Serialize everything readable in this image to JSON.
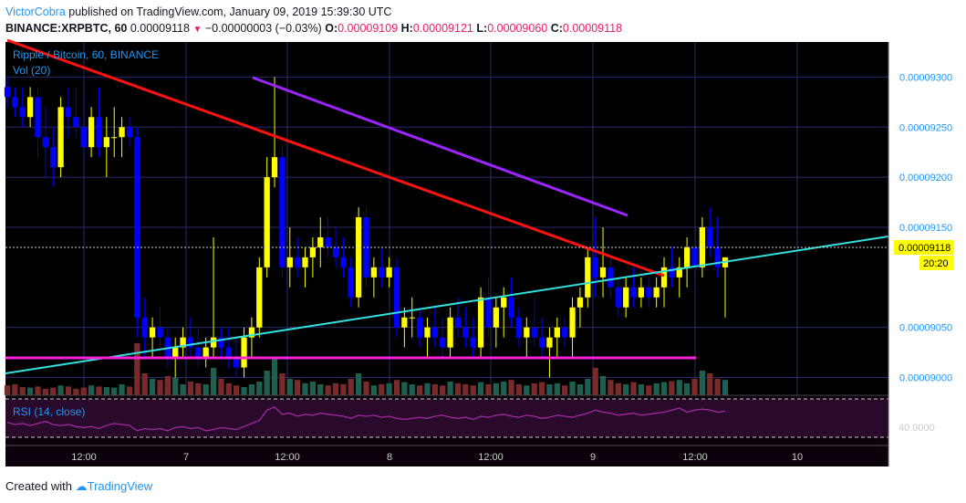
{
  "header": {
    "author": "VictorCobra",
    "published": "published on TradingView.com, January 09, 2019 15:39:30 UTC",
    "symbol": "BINANCE:XRPBTC, 60",
    "last": "0.00009118",
    "change": "−0.00000003 (−0.03%)",
    "o_label": "O:",
    "o": "0.00009109",
    "h_label": "H:",
    "h": "0.00009121",
    "l_label": "L:",
    "l": "0.00009060",
    "c_label": "C:",
    "c": "0.00009118"
  },
  "legend": {
    "title": "Ripple / Bitcoin, 60, BINANCE",
    "vol": "Vol (20)",
    "rsi": "RSI (14, close)"
  },
  "footer": {
    "created_with": "Created with",
    "brand": "TradingView"
  },
  "colors": {
    "background": "#000000",
    "grid": "#2a2a6a",
    "bull": "#ffff00",
    "bear": "#0000ff",
    "vol_bull": "#1f5f4f",
    "vol_bear": "#7a2a2a",
    "trend_red": "#ff1111",
    "trend_purple": "#9b24ff",
    "trend_cyan": "#33e0e0",
    "support_magenta": "#ff22dd",
    "rsi_line": "#a02aa0",
    "axis_text": "#2196f3",
    "price_label_bg": "#ffff00"
  },
  "chart_data": {
    "type": "candlestick",
    "title": "Ripple / Bitcoin, 60, BINANCE",
    "y_ticks": [
      "0.00009300",
      "0.00009250",
      "0.00009200",
      "0.00009150",
      "0.00009050",
      "0.00009000"
    ],
    "ylim": [
      8.985e-05,
      9.335e-05
    ],
    "x_ticks": [
      "12:00",
      "7",
      "12:00",
      "8",
      "12:00",
      "9",
      "12:00",
      "10"
    ],
    "current_price": "0.00009118",
    "countdown": "20:20",
    "rsi_level_label": "40.0000",
    "candles": [
      [
        9.29e-05,
        9.3e-05,
        9.27e-05,
        9.28e-05
      ],
      [
        9.28e-05,
        9.29e-05,
        9.26e-05,
        9.27e-05
      ],
      [
        9.27e-05,
        9.29e-05,
        9.25e-05,
        9.26e-05
      ],
      [
        9.26e-05,
        9.29e-05,
        9.25e-05,
        9.28e-05
      ],
      [
        9.28e-05,
        9.29e-05,
        9.22e-05,
        9.24e-05
      ],
      [
        9.24e-05,
        9.27e-05,
        9.2e-05,
        9.23e-05
      ],
      [
        9.23e-05,
        9.25e-05,
        9.19e-05,
        9.21e-05
      ],
      [
        9.21e-05,
        9.28e-05,
        9.2e-05,
        9.27e-05
      ],
      [
        9.27e-05,
        9.29e-05,
        9.24e-05,
        9.26e-05
      ],
      [
        9.26e-05,
        9.29e-05,
        9.24e-05,
        9.25e-05
      ],
      [
        9.25e-05,
        9.28e-05,
        9.22e-05,
        9.23e-05
      ],
      [
        9.23e-05,
        9.27e-05,
        9.22e-05,
        9.26e-05
      ],
      [
        9.26e-05,
        9.29e-05,
        9.22e-05,
        9.23e-05
      ],
      [
        9.23e-05,
        9.26e-05,
        9.2e-05,
        9.24e-05
      ],
      [
        9.24e-05,
        9.27e-05,
        9.22e-05,
        9.24e-05
      ],
      [
        9.24e-05,
        9.26e-05,
        9.22e-05,
        9.25e-05
      ],
      [
        9.25e-05,
        9.26e-05,
        9.23e-05,
        9.24e-05
      ],
      [
        9.24e-05,
        9.25e-05,
        9.04e-05,
        9.06e-05
      ],
      [
        9.06e-05,
        9.08e-05,
        9.02e-05,
        9.04e-05
      ],
      [
        9.04e-05,
        9.06e-05,
        9.02e-05,
        9.05e-05
      ],
      [
        9.05e-05,
        9.07e-05,
        9.03e-05,
        9.04e-05
      ],
      [
        9.04e-05,
        9.05e-05,
        9.01e-05,
        9.02e-05
      ],
      [
        9.02e-05,
        9.04e-05,
        9e-05,
        9.03e-05
      ],
      [
        9.03e-05,
        9.05e-05,
        9.02e-05,
        9.04e-05
      ],
      [
        9.04e-05,
        9.06e-05,
        9.02e-05,
        9.03e-05
      ],
      [
        9.03e-05,
        9.05e-05,
        9.01e-05,
        9.02e-05
      ],
      [
        9.02e-05,
        9.04e-05,
        9.01e-05,
        9.03e-05
      ],
      [
        9.03e-05,
        9.14e-05,
        9.02e-05,
        9.04e-05
      ],
      [
        9.04e-05,
        9.05e-05,
        9.02e-05,
        9.03e-05
      ],
      [
        9.03e-05,
        9.05e-05,
        9.01e-05,
        9.02e-05
      ],
      [
        9.02e-05,
        9.04e-05,
        9e-05,
        9.01e-05
      ],
      [
        9.01e-05,
        9.05e-05,
        9e-05,
        9.04e-05
      ],
      [
        9.04e-05,
        9.06e-05,
        9.02e-05,
        9.05e-05
      ],
      [
        9.05e-05,
        9.12e-05,
        9.04e-05,
        9.11e-05
      ],
      [
        9.11e-05,
        9.22e-05,
        9.1e-05,
        9.2e-05
      ],
      [
        9.2e-05,
        9.3e-05,
        9.19e-05,
        9.22e-05
      ],
      [
        9.22e-05,
        9.23e-05,
        9.1e-05,
        9.11e-05
      ],
      [
        9.11e-05,
        9.15e-05,
        9.09e-05,
        9.12e-05
      ],
      [
        9.12e-05,
        9.14e-05,
        9.1e-05,
        9.11e-05
      ],
      [
        9.11e-05,
        9.13e-05,
        9.09e-05,
        9.12e-05
      ],
      [
        9.12e-05,
        9.14e-05,
        9.1e-05,
        9.13e-05
      ],
      [
        9.13e-05,
        9.16e-05,
        9.11e-05,
        9.14e-05
      ],
      [
        9.14e-05,
        9.16e-05,
        9.12e-05,
        9.13e-05
      ],
      [
        9.13e-05,
        9.15e-05,
        9.11e-05,
        9.12e-05
      ],
      [
        9.12e-05,
        9.14e-05,
        9.1e-05,
        9.11e-05
      ],
      [
        9.11e-05,
        9.12e-05,
        9.07e-05,
        9.08e-05
      ],
      [
        9.08e-05,
        9.17e-05,
        9.07e-05,
        9.16e-05
      ],
      [
        9.16e-05,
        9.17e-05,
        9.09e-05,
        9.1e-05
      ],
      [
        9.1e-05,
        9.12e-05,
        9.08e-05,
        9.11e-05
      ],
      [
        9.11e-05,
        9.13e-05,
        9.09e-05,
        9.1e-05
      ],
      [
        9.1e-05,
        9.12e-05,
        9.09e-05,
        9.11e-05
      ],
      [
        9.11e-05,
        9.12e-05,
        9.04e-05,
        9.05e-05
      ],
      [
        9.05e-05,
        9.07e-05,
        9.03e-05,
        9.06e-05
      ],
      [
        9.06e-05,
        9.08e-05,
        9.04e-05,
        9.06e-05
      ],
      [
        9.06e-05,
        9.07e-05,
        9.03e-05,
        9.04e-05
      ],
      [
        9.04e-05,
        9.06e-05,
        9.02e-05,
        9.05e-05
      ],
      [
        9.05e-05,
        9.07e-05,
        9.03e-05,
        9.04e-05
      ],
      [
        9.04e-05,
        9.06e-05,
        9.02e-05,
        9.03e-05
      ],
      [
        9.03e-05,
        9.07e-05,
        9.02e-05,
        9.06e-05
      ],
      [
        9.06e-05,
        9.08e-05,
        9.04e-05,
        9.05e-05
      ],
      [
        9.05e-05,
        9.07e-05,
        9.03e-05,
        9.04e-05
      ],
      [
        9.04e-05,
        9.06e-05,
        9.02e-05,
        9.03e-05
      ],
      [
        9.03e-05,
        9.09e-05,
        9.02e-05,
        9.08e-05
      ],
      [
        9.08e-05,
        9.1e-05,
        9.04e-05,
        9.05e-05
      ],
      [
        9.05e-05,
        9.08e-05,
        9.03e-05,
        9.07e-05
      ],
      [
        9.07e-05,
        9.09e-05,
        9.04e-05,
        9.08e-05
      ],
      [
        9.08e-05,
        9.1e-05,
        9.05e-05,
        9.06e-05
      ],
      [
        9.06e-05,
        9.07e-05,
        9.03e-05,
        9.04e-05
      ],
      [
        9.04e-05,
        9.06e-05,
        9.02e-05,
        9.05e-05
      ],
      [
        9.05e-05,
        9.08e-05,
        9.03e-05,
        9.04e-05
      ],
      [
        9.04e-05,
        9.06e-05,
        9.02e-05,
        9.03e-05
      ],
      [
        9.03e-05,
        9.05e-05,
        9e-05,
        9.04e-05
      ],
      [
        9.04e-05,
        9.06e-05,
        9.02e-05,
        9.05e-05
      ],
      [
        9.05e-05,
        9.06e-05,
        9.03e-05,
        9.04e-05
      ],
      [
        9.04e-05,
        9.08e-05,
        9.02e-05,
        9.07e-05
      ],
      [
        9.07e-05,
        9.09e-05,
        9.05e-05,
        9.08e-05
      ],
      [
        9.08e-05,
        9.13e-05,
        9.07e-05,
        9.12e-05
      ],
      [
        9.12e-05,
        9.16e-05,
        9.08e-05,
        9.1e-05
      ],
      [
        9.1e-05,
        9.15e-05,
        9.08e-05,
        9.11e-05
      ],
      [
        9.11e-05,
        9.12e-05,
        9.08e-05,
        9.09e-05
      ],
      [
        9.09e-05,
        9.1e-05,
        9.06e-05,
        9.07e-05
      ],
      [
        9.07e-05,
        9.1e-05,
        9.06e-05,
        9.09e-05
      ],
      [
        9.09e-05,
        9.11e-05,
        9.07e-05,
        9.08e-05
      ],
      [
        9.08e-05,
        9.1e-05,
        9.07e-05,
        9.09e-05
      ],
      [
        9.09e-05,
        9.1e-05,
        9.07e-05,
        9.08e-05
      ],
      [
        9.08e-05,
        9.1e-05,
        9.07e-05,
        9.09e-05
      ],
      [
        9.09e-05,
        9.12e-05,
        9.07e-05,
        9.11e-05
      ],
      [
        9.11e-05,
        9.13e-05,
        9.09e-05,
        9.1e-05
      ],
      [
        9.1e-05,
        9.12e-05,
        9.08e-05,
        9.11e-05
      ],
      [
        9.11e-05,
        9.14e-05,
        9.09e-05,
        9.13e-05
      ],
      [
        9.13e-05,
        9.15e-05,
        9.1e-05,
        9.11e-05
      ],
      [
        9.11e-05,
        9.16e-05,
        9.1e-05,
        9.15e-05
      ],
      [
        9.15e-05,
        9.17e-05,
        9.12e-05,
        9.13e-05
      ],
      [
        9.13e-05,
        9.16e-05,
        9.1e-05,
        9.11e-05
      ],
      [
        9.11e-05,
        9.12e-05,
        9.06e-05,
        9.12e-05
      ]
    ],
    "volume_max": 100,
    "volumes": [
      18,
      20,
      15,
      14,
      16,
      12,
      14,
      18,
      16,
      12,
      14,
      18,
      16,
      15,
      14,
      20,
      16,
      95,
      40,
      30,
      28,
      35,
      32,
      20,
      25,
      22,
      20,
      50,
      30,
      22,
      18,
      15,
      20,
      25,
      45,
      70,
      40,
      30,
      28,
      22,
      25,
      20,
      18,
      22,
      20,
      30,
      40,
      25,
      18,
      20,
      22,
      28,
      24,
      20,
      18,
      22,
      20,
      18,
      25,
      22,
      20,
      18,
      24,
      20,
      22,
      25,
      28,
      20,
      18,
      22,
      24,
      20,
      22,
      18,
      25,
      20,
      30,
      50,
      35,
      28,
      22,
      20,
      24,
      20,
      18,
      22,
      24,
      26,
      28,
      22,
      30,
      45,
      40,
      30,
      28
    ],
    "rsi": [
      48,
      46,
      47,
      45,
      47,
      49,
      46,
      45,
      46,
      44,
      43,
      44,
      42,
      45,
      47,
      46,
      45,
      40,
      42,
      41,
      42,
      40,
      43,
      44,
      42,
      43,
      40,
      41,
      43,
      42,
      41,
      44,
      47,
      50,
      60,
      63,
      56,
      57,
      54,
      56,
      55,
      57,
      56,
      55,
      54,
      52,
      55,
      54,
      55,
      53,
      54,
      52,
      51,
      52,
      53,
      52,
      54,
      55,
      53,
      52,
      53,
      51,
      54,
      53,
      55,
      56,
      54,
      53,
      55,
      54,
      52,
      53,
      55,
      54,
      53,
      55,
      57,
      60,
      58,
      57,
      55,
      56,
      57,
      55,
      56,
      57,
      58,
      60,
      62,
      58,
      60,
      61,
      60,
      58,
      59
    ]
  }
}
